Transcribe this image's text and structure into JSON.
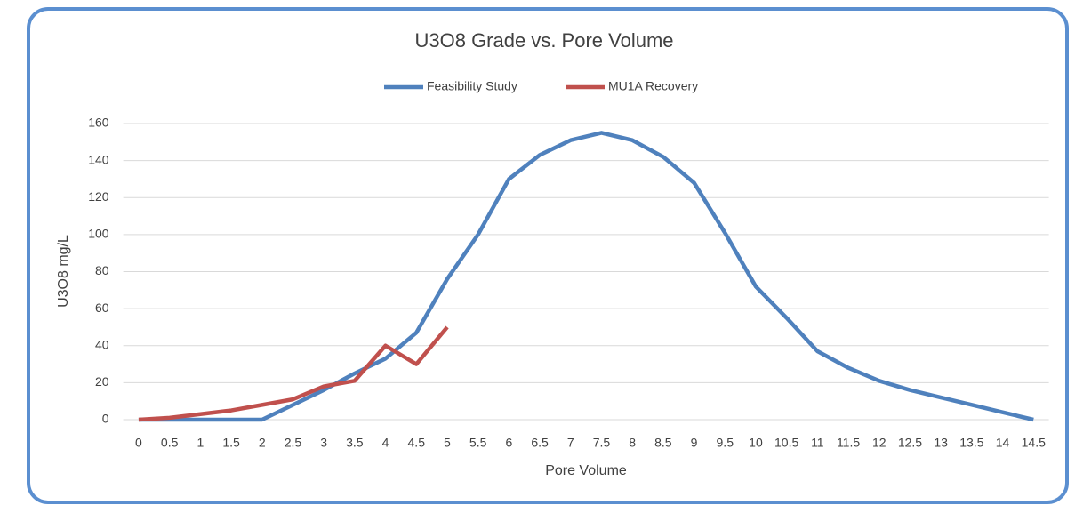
{
  "chart_data": {
    "type": "line",
    "title": "U3O8 Grade vs. Pore Volume",
    "x_label": "Pore Volume",
    "y_label": "U3O8 mg/L",
    "categories": [
      "0",
      "0.5",
      "1",
      "1.5",
      "2",
      "2.5",
      "3",
      "3.5",
      "4",
      "4.5",
      "5",
      "5.5",
      "6",
      "6.5",
      "7",
      "7.5",
      "8",
      "8.5",
      "9",
      "9.5",
      "10",
      "10.5",
      "11",
      "11.5",
      "12",
      "12.5",
      "13",
      "13.5",
      "14",
      "14.5"
    ],
    "series": [
      {
        "name": "Feasibility Study",
        "color": "#4f81bd",
        "values": [
          0,
          0,
          0,
          0,
          0,
          8,
          16,
          25,
          33,
          47,
          76,
          100,
          130,
          143,
          151,
          155,
          151,
          142,
          128,
          101,
          72,
          55,
          37,
          28,
          21,
          16,
          12,
          8,
          4,
          0
        ]
      },
      {
        "name": "MU1A Recovery",
        "color": "#c0504d",
        "values": [
          0,
          1,
          3,
          5,
          8,
          11,
          18,
          21,
          40,
          30,
          50,
          null,
          null,
          null,
          null,
          null,
          null,
          null,
          null,
          null,
          null,
          null,
          null,
          null,
          null,
          null,
          null,
          null,
          null,
          null
        ]
      }
    ],
    "ylim": [
      0,
      160
    ],
    "yticks": [
      0,
      20,
      40,
      60,
      80,
      100,
      120,
      140,
      160
    ],
    "grid": true,
    "legend": "top"
  }
}
